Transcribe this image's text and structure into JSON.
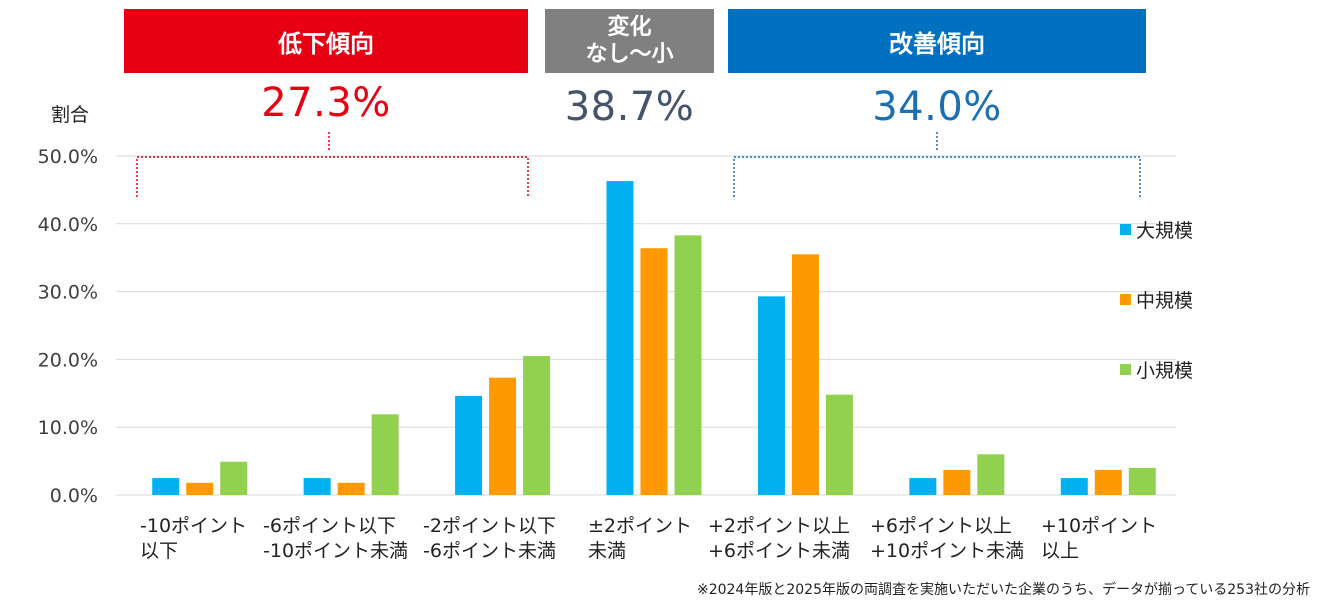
{
  "bands": {
    "decline": {
      "label": "低下傾向",
      "percent": "27.3%",
      "color": "#e60012"
    },
    "nochange": {
      "label": "変化\nなし〜小",
      "percent": "38.7%",
      "color": "#808080"
    },
    "improve": {
      "label": "改善傾向",
      "percent": "34.0%",
      "color": "#0070c0"
    }
  },
  "footnote": "※2024年版と2025年版の両調査を実施いただいた企業のうち、データが揃っている253社の分析",
  "chart_data": {
    "type": "bar",
    "ylabel": "割合",
    "xlabel": "",
    "ylim": [
      0,
      50
    ],
    "yticks": [
      "0.0%",
      "10.0%",
      "20.0%",
      "30.0%",
      "40.0%",
      "50.0%"
    ],
    "grid": true,
    "legend_position": "right",
    "categories": [
      [
        "-10ポイント",
        "以下"
      ],
      [
        "-6ポイント以下",
        "-10ポイント未満"
      ],
      [
        "-2ポイント以下",
        "-6ポイント未満"
      ],
      [
        "±2ポイント",
        "未満"
      ],
      [
        "+2ポイント以上",
        "+6ポイント未満"
      ],
      [
        "+6ポイント以上",
        "+10ポイント未満"
      ],
      [
        "+10ポイント",
        "以上"
      ]
    ],
    "series": [
      {
        "name": "大規模",
        "color": "#00b0f0",
        "values": [
          2.5,
          2.5,
          14.6,
          46.3,
          29.3,
          2.5,
          2.5
        ]
      },
      {
        "name": "中規模",
        "color": "#ff9900",
        "values": [
          1.8,
          1.8,
          17.3,
          36.4,
          35.5,
          3.7,
          3.7
        ]
      },
      {
        "name": "小規模",
        "color": "#92d050",
        "values": [
          4.9,
          11.9,
          20.5,
          38.3,
          14.8,
          6.0,
          4.0
        ]
      }
    ]
  }
}
